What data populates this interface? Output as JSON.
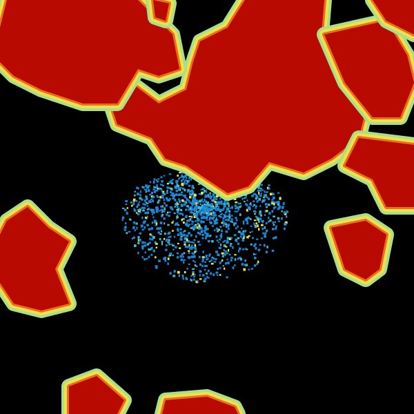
{
  "radar": {
    "background": "#000000",
    "palette": {
      "edge_green": "#a8e08a",
      "edge_yellow": "#f2e04a",
      "mid_orange": "#e8701a",
      "core_red": "#b80a00",
      "clutter_blue": "#1a88d8",
      "clutter_cyan": "#40b8d0"
    }
  }
}
